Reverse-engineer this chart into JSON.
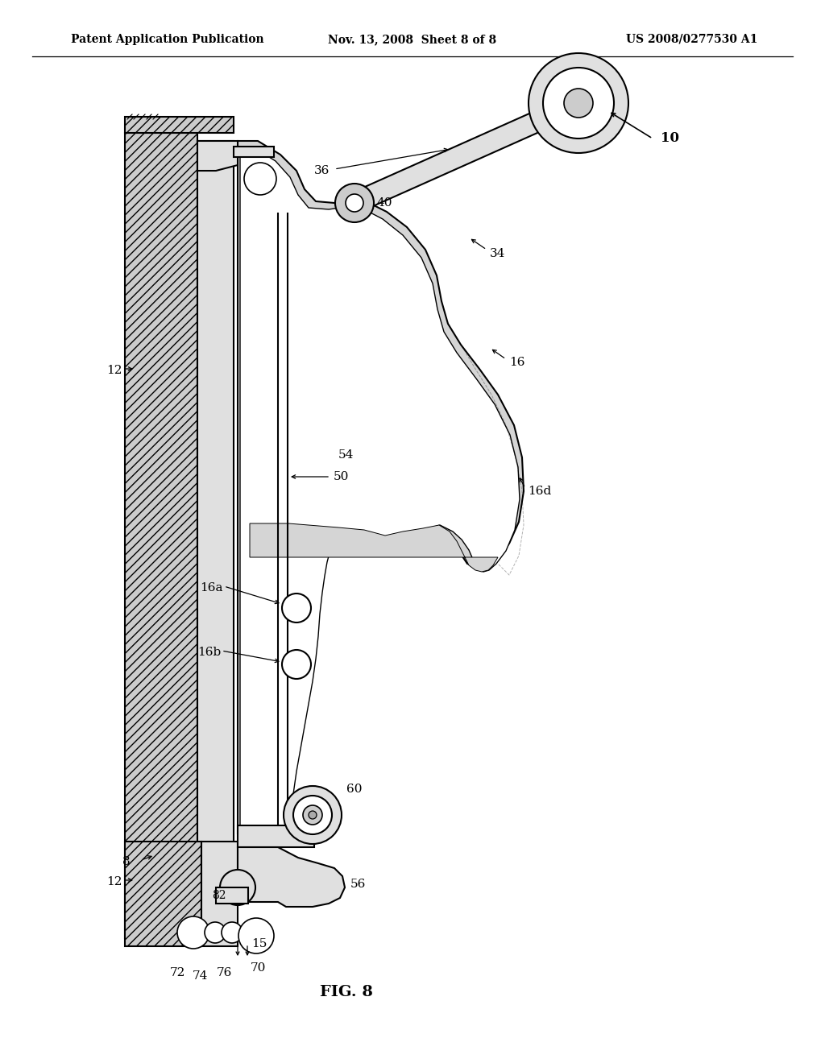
{
  "background_color": "#ffffff",
  "header_left": "Patent Application Publication",
  "header_mid": "Nov. 13, 2008  Sheet 8 of 8",
  "header_right": "US 2008/0277530 A1",
  "fig_label": "FIG. 8",
  "line_color": "#000000",
  "fill_light": "#e0e0e0",
  "fill_medium": "#cccccc",
  "fill_dark": "#aaaaaa"
}
